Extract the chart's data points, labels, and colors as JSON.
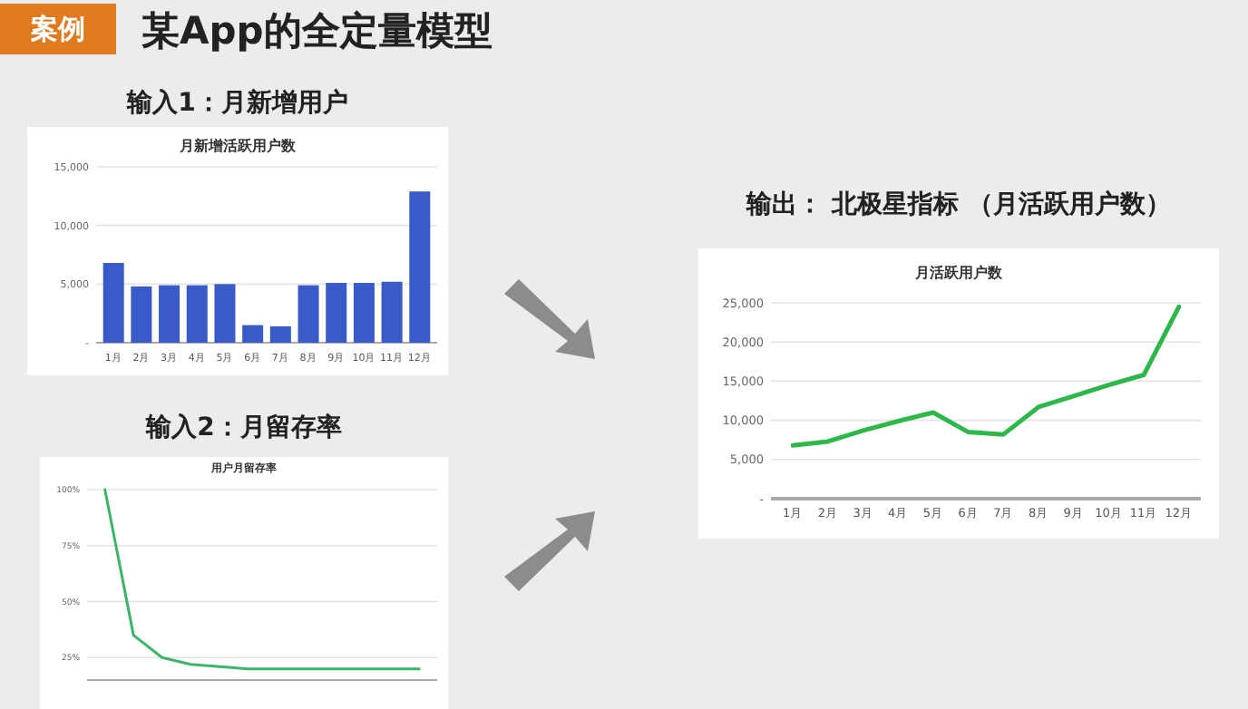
{
  "chart_data": [
    {
      "type": "bar",
      "title": "输入1：月新增用户",
      "subtitle": "月新增活跃用户数",
      "annotations": [
        "案例",
        "某App的全定量模型"
      ],
      "categories": [
        "1月",
        "2月",
        "3月",
        "4月",
        "5月",
        "6月",
        "7月",
        "8月",
        "9月",
        "10月",
        "11月",
        "12月"
      ],
      "values": [
        6800,
        4800,
        4900,
        4900,
        5000,
        1500,
        1400,
        4900,
        5100,
        5100,
        5200,
        12900
      ],
      "color": "#3a5bc7",
      "ylim": [
        0,
        15000
      ],
      "yticks": [
        {
          "value": 0,
          "label": "-"
        },
        {
          "value": 5000,
          "label": "5,000"
        },
        {
          "value": 10000,
          "label": "10,000"
        },
        {
          "value": 15000,
          "label": "15,000"
        }
      ],
      "grid": "y"
    },
    {
      "type": "line",
      "title": "输入2：月留存率",
      "subtitle": "用户月留存率",
      "categories": [
        null,
        null,
        null,
        null,
        null,
        null,
        null,
        null,
        null,
        null,
        null,
        null
      ],
      "values": [
        100,
        35,
        25,
        22,
        21,
        20,
        20,
        20,
        20,
        20,
        20,
        20
      ],
      "color": "#3cb56a",
      "ylim": [
        15,
        100
      ],
      "yticks": [
        {
          "value": 25,
          "label": "25%"
        },
        {
          "value": 50,
          "label": "50%"
        },
        {
          "value": 75,
          "label": "75%"
        },
        {
          "value": 100,
          "label": "100%"
        }
      ],
      "grid": "y"
    },
    {
      "type": "line",
      "title": "输出： 北极星指标 （月活跃用户数）",
      "subtitle": "月活跃用户数",
      "categories": [
        "1月",
        "2月",
        "3月",
        "4月",
        "5月",
        "6月",
        "7月",
        "8月",
        "9月",
        "10月",
        "11月",
        "12月"
      ],
      "values": [
        6800,
        7300,
        8700,
        9900,
        11000,
        8500,
        8200,
        11700,
        13100,
        14500,
        15800,
        24500
      ],
      "color": "#2eb84b",
      "ylim": [
        0,
        25000
      ],
      "yticks": [
        {
          "value": 0,
          "label": "-"
        },
        {
          "value": 5000,
          "label": "5,000"
        },
        {
          "value": 10000,
          "label": "10,000"
        },
        {
          "value": 15000,
          "label": "15,000"
        },
        {
          "value": 20000,
          "label": "20,000"
        },
        {
          "value": 25000,
          "label": "25,000"
        }
      ],
      "grid": "y"
    }
  ]
}
